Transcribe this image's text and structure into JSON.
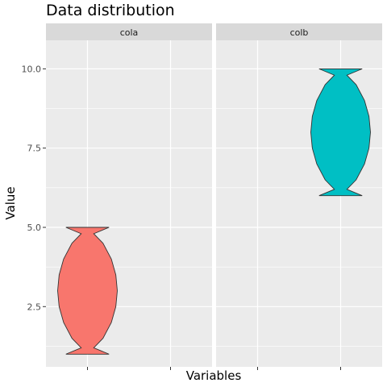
{
  "chart_data": {
    "type": "violin",
    "title": "Data distribution",
    "xlabel": "Variables",
    "ylabel": "Value",
    "ylim": [
      0.6,
      10.9
    ],
    "yticks": [
      2.5,
      5.0,
      7.5,
      10.0
    ],
    "ytick_labels": [
      "2.5",
      "5.0",
      "7.5",
      "10.0"
    ],
    "grid": true,
    "facets": [
      "cola",
      "colb"
    ],
    "series": [
      {
        "name": "cola",
        "color": "#F8766D",
        "min": 1.0,
        "max": 5.0,
        "profile": [
          [
            1.0,
            0.0
          ],
          [
            1.2,
            0.21
          ],
          [
            1.5,
            0.52
          ],
          [
            2.0,
            0.8
          ],
          [
            2.5,
            0.95
          ],
          [
            3.0,
            1.0
          ],
          [
            3.5,
            0.95
          ],
          [
            4.0,
            0.8
          ],
          [
            4.5,
            0.52
          ],
          [
            4.8,
            0.21
          ],
          [
            5.0,
            0.0
          ]
        ]
      },
      {
        "name": "colb",
        "color": "#00BFC4",
        "min": 6.0,
        "max": 10.0,
        "profile": [
          [
            6.0,
            0.0
          ],
          [
            6.2,
            0.21
          ],
          [
            6.5,
            0.52
          ],
          [
            7.0,
            0.8
          ],
          [
            7.5,
            0.95
          ],
          [
            8.0,
            1.0
          ],
          [
            8.5,
            0.95
          ],
          [
            9.0,
            0.8
          ],
          [
            9.5,
            0.52
          ],
          [
            9.8,
            0.21
          ],
          [
            10.0,
            0.0
          ]
        ]
      }
    ],
    "colors": {
      "panel_background": "#EBEBEB",
      "strip_background": "#D9D9D9",
      "grid_major": "#FFFFFF",
      "outline": "#333333"
    }
  }
}
